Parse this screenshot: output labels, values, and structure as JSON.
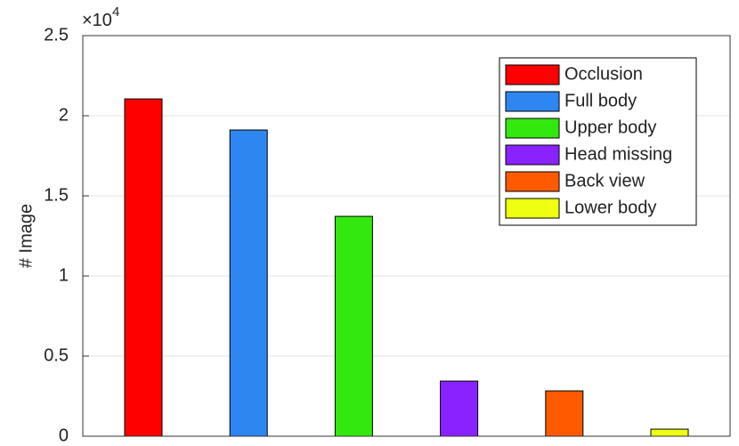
{
  "chart_data": {
    "type": "bar",
    "y_label": "# Image",
    "y_multiplier_base": "×10",
    "y_multiplier_exponent": 4,
    "categories": [
      "Occlusion",
      "Full body",
      "Upper body",
      "Head missing",
      "Back view",
      "Lower body"
    ],
    "values": [
      2.105,
      1.911,
      1.372,
      0.344,
      0.283,
      0.044
    ],
    "colors": [
      "#ff0000",
      "#2e86f0",
      "#33e80e",
      "#8a22ff",
      "#ff5a00",
      "#eeff11"
    ],
    "ylim": [
      0,
      2.5
    ],
    "yticks": [
      0,
      0.5,
      1,
      1.5,
      2,
      2.5
    ],
    "grid": true,
    "legend": "upper right"
  }
}
